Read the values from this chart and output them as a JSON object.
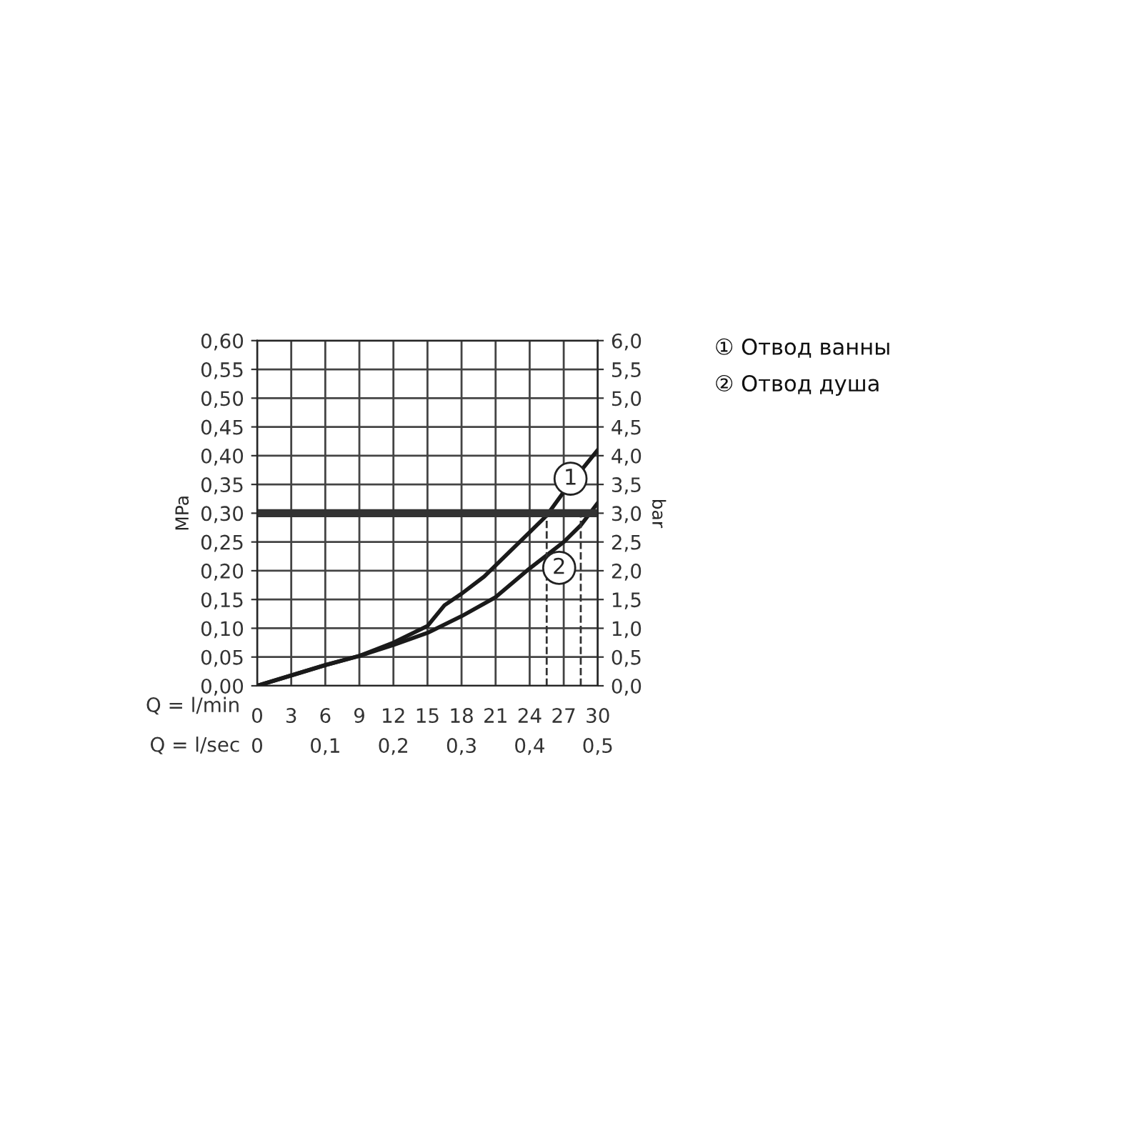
{
  "chart_data": {
    "type": "line",
    "xlabel": "Q = l/min",
    "x2label": "Q = l/sec",
    "ylabel": "MPa",
    "y2label": "bar",
    "x": [
      0,
      3,
      6,
      9,
      12,
      15,
      16.5,
      18,
      20,
      24,
      25.5,
      27,
      30
    ],
    "series": [
      {
        "color": "#1a1a1a",
        "values": [
          0,
          0.018,
          0.036,
          0.052,
          0.075,
          0.104,
          0.14,
          0.16,
          0.19,
          0.267,
          0.296,
          0.337,
          0.41
        ]
      },
      {
        "color": "#1a1a1a",
        "x": [
          0,
          3,
          6,
          9,
          12,
          15,
          18,
          21,
          24,
          27,
          28.5,
          30
        ],
        "values": [
          0,
          0.018,
          0.036,
          0.052,
          0.071,
          0.092,
          0.121,
          0.154,
          0.204,
          0.25,
          0.279,
          0.318
        ]
      }
    ],
    "xlim": [
      0,
      30
    ],
    "xticks": [
      0,
      3,
      6,
      9,
      12,
      15,
      18,
      21,
      24,
      27,
      30
    ],
    "x2lim": [
      0,
      0.5
    ],
    "x2ticks": [
      0,
      {
        "value": 0.1,
        "label": "0,1"
      },
      {
        "value": 0.2,
        "label": "0,2"
      },
      {
        "value": 0.3,
        "label": "0,3"
      },
      {
        "value": 0.4,
        "label": "0,4"
      },
      {
        "value": 0.5,
        "label": "0,5"
      }
    ],
    "ylim": [
      0,
      0.6
    ],
    "yticks": [
      {
        "value": 0,
        "label": "0,00"
      },
      {
        "value": 0.05,
        "label": "0,05"
      },
      {
        "value": 0.1,
        "label": "0,10"
      },
      {
        "value": 0.15,
        "label": "0,15"
      },
      {
        "value": 0.2,
        "label": "0,20"
      },
      {
        "value": 0.25,
        "label": "0,25"
      },
      {
        "value": 0.3,
        "label": "0,30"
      },
      {
        "value": 0.35,
        "label": "0,35"
      },
      {
        "value": 0.4,
        "label": "0,40"
      },
      {
        "value": 0.45,
        "label": "0,45"
      },
      {
        "value": 0.5,
        "label": "0,50"
      },
      {
        "value": 0.55,
        "label": "0,55"
      },
      {
        "value": 0.6,
        "label": "0,60"
      }
    ],
    "y2lim": [
      0,
      6
    ],
    "y2ticks": [
      {
        "value": 0,
        "label": "0,0"
      },
      {
        "value": 0.5,
        "label": "0,5"
      },
      {
        "value": 1,
        "label": "1,0"
      },
      {
        "value": 1.5,
        "label": "1,5"
      },
      {
        "value": 2,
        "label": "2,0"
      },
      {
        "value": 2.5,
        "label": "2,5"
      },
      {
        "value": 3,
        "label": "3,0"
      },
      {
        "value": 3.5,
        "label": "3,5"
      },
      {
        "value": 4,
        "label": "4,0"
      },
      {
        "value": 4.5,
        "label": "4,5"
      },
      {
        "value": 5,
        "label": "5,0"
      },
      {
        "value": 5.5,
        "label": "5,5"
      },
      {
        "value": 6,
        "label": "6,0"
      }
    ],
    "ref_lines": [
      {
        "axis": "y",
        "value": 0.3,
        "color": "#333333",
        "line_style": "solid"
      },
      {
        "axis": "x",
        "value": 25.5,
        "color": "#333333",
        "line_style": "dashed"
      },
      {
        "axis": "x",
        "value": 28.5,
        "color": "#333333",
        "line_style": "dashed"
      }
    ],
    "annotations": [
      {
        "text": "1",
        "x": 27.6,
        "y": 0.36
      },
      {
        "text": "2",
        "x": 26.6,
        "y": 0.205
      },
      "① Отвод ванны",
      "② Отвод душа"
    ],
    "grid": true,
    "marker": "none",
    "line_style": "solid"
  }
}
